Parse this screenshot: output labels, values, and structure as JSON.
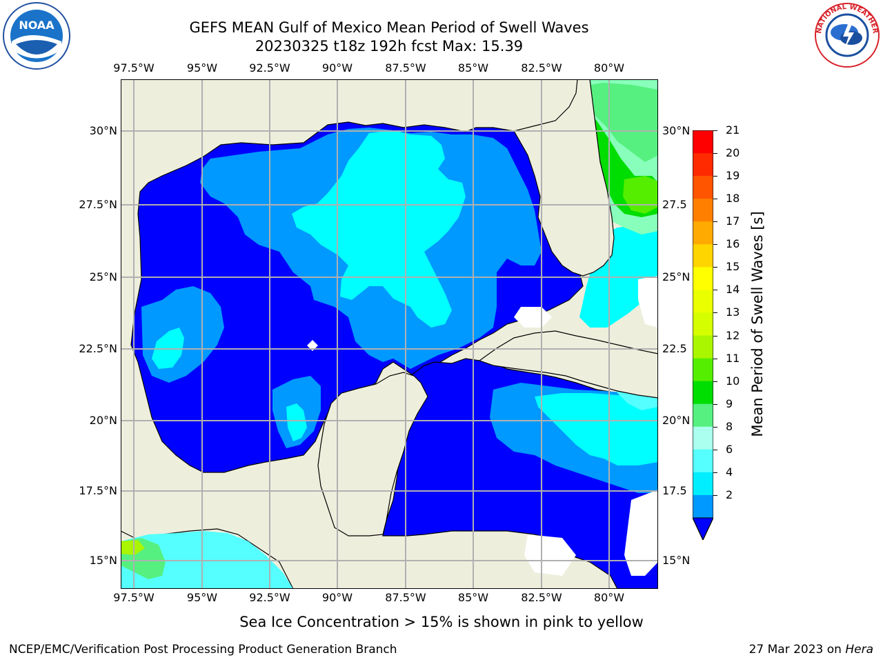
{
  "title": {
    "line1": "GEFS MEAN Gulf of Mexico Mean Period of Swell Waves",
    "line2": "20230325 t18z 192h fcst   Max: 15.39"
  },
  "map": {
    "longitude_labels": [
      "97.5°W",
      "95°W",
      "92.5°W",
      "90°W",
      "87.5°W",
      "85°W",
      "82.5°W",
      "80°W"
    ],
    "latitude_labels_left": [
      "30°N",
      "27.5°N",
      "25°N",
      "22.5°N",
      "20°N",
      "17.5°N",
      "15°N"
    ],
    "latitude_labels_right": [
      "30°N",
      "27.5",
      "25°N",
      "22.5",
      "20°N",
      "17.5",
      "15°N"
    ],
    "colors": {
      "land": "#eeeedd",
      "grid": "#b0b0b0",
      "no_data": "#ffffff"
    }
  },
  "colorbar": {
    "title": "Mean Period of Swell Waves [s]",
    "ticks": [
      "21",
      "20",
      "19",
      "18",
      "17",
      "16",
      "15",
      "14",
      "13",
      "12",
      "11",
      "10",
      "9",
      "8",
      "6",
      "4",
      "2"
    ],
    "colors": [
      "#ff0000",
      "#ff2a00",
      "#ff5500",
      "#ff8000",
      "#ffaa00",
      "#ffd500",
      "#ffff00",
      "#eaff00",
      "#d5ff00",
      "#aaf500",
      "#55ee00",
      "#00dd00",
      "#55f080",
      "#aaffee",
      "#55ffff",
      "#00eeff",
      "#0099ff",
      "#0000ff"
    ]
  },
  "logos": {
    "noaa_text": "NOAA",
    "nws_text": "NATIONAL WEATHER SERVICE"
  },
  "sea_ice_note": "Sea Ice Concentration > 15% is shown in pink to yellow",
  "footer": {
    "left": "NCEP/EMC/Verification Post Processing Product Generation Branch",
    "date": "27 Mar 2023 on",
    "host": "Hera"
  }
}
